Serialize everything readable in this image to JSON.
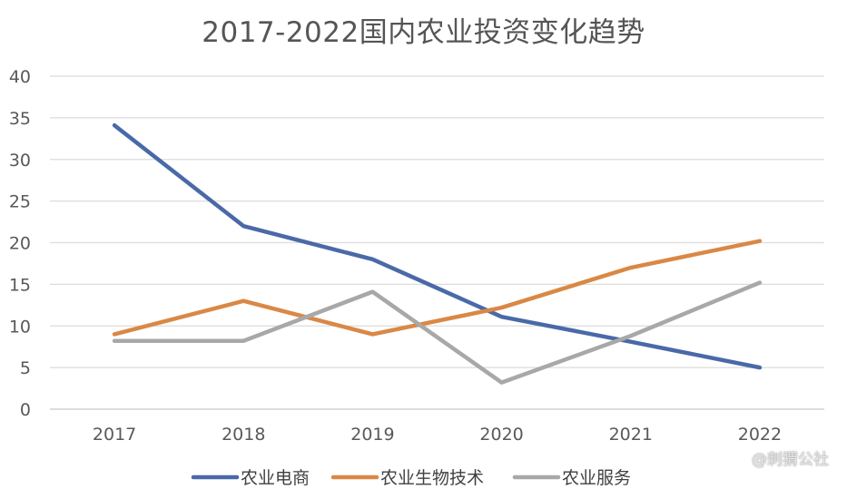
{
  "chart_data": {
    "type": "line",
    "title": "2017-2022国内农业投资变化趋势",
    "categories": [
      "2017",
      "2018",
      "2019",
      "2020",
      "2021",
      "2022"
    ],
    "ylim": [
      0,
      40
    ],
    "yticks": [
      0,
      5,
      10,
      15,
      20,
      25,
      30,
      35,
      40
    ],
    "grid": true,
    "legend_position": "bottom",
    "series": [
      {
        "name": "农业电商",
        "color": "#4a69a8",
        "values": [
          34.1,
          22.0,
          18.0,
          11.1,
          8.1,
          5.0
        ]
      },
      {
        "name": "农业生物技术",
        "color": "#d98845",
        "values": [
          9.0,
          13.0,
          9.0,
          12.2,
          17.0,
          20.2
        ]
      },
      {
        "name": "农业服务",
        "color": "#a8a8a8",
        "values": [
          8.2,
          8.2,
          14.1,
          3.2,
          8.8,
          15.2
        ]
      }
    ]
  },
  "watermark": "@刺猬公社"
}
